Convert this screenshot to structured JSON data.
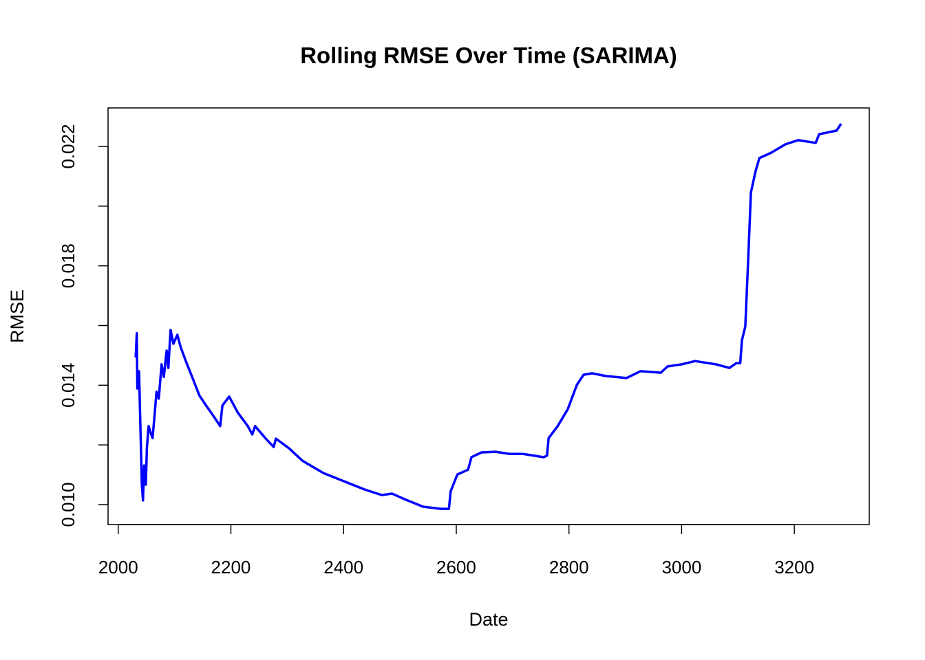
{
  "chart_data": {
    "type": "line",
    "title": "Rolling RMSE Over Time (SARIMA)",
    "x_label": "Date",
    "y_label": "RMSE",
    "x": [
      2031,
      2033,
      2034,
      2037,
      2040,
      2042,
      2044,
      2046,
      2049,
      2051,
      2054,
      2057,
      2061,
      2065,
      2068,
      2072,
      2077,
      2081,
      2086,
      2089,
      2093,
      2098,
      2105,
      2111,
      2120,
      2132,
      2144,
      2156,
      2169,
      2181,
      2185,
      2197,
      2212,
      2230,
      2238,
      2243,
      2261,
      2276,
      2280,
      2303,
      2327,
      2364,
      2401,
      2437,
      2468,
      2486,
      2511,
      2541,
      2572,
      2587,
      2590,
      2602,
      2621,
      2627,
      2645,
      2670,
      2694,
      2718,
      2755,
      2761,
      2764,
      2780,
      2798,
      2814,
      2826,
      2841,
      2865,
      2902,
      2927,
      2963,
      2975,
      3000,
      3024,
      3061,
      3085,
      3097,
      3104,
      3107,
      3113,
      3118,
      3123,
      3131,
      3138,
      3159,
      3184,
      3207,
      3238,
      3244,
      3275,
      3283
    ],
    "values": [
      0.01493,
      0.01574,
      0.01389,
      0.01447,
      0.01217,
      0.01067,
      0.01014,
      0.01131,
      0.01067,
      0.01193,
      0.01263,
      0.01244,
      0.01223,
      0.01309,
      0.01378,
      0.01355,
      0.0147,
      0.01428,
      0.01516,
      0.01458,
      0.01585,
      0.01539,
      0.01569,
      0.01527,
      0.01481,
      0.01424,
      0.01366,
      0.01332,
      0.01297,
      0.01263,
      0.01332,
      0.01362,
      0.01309,
      0.01263,
      0.01235,
      0.01263,
      0.01223,
      0.01193,
      0.01221,
      0.01189,
      0.01147,
      0.01106,
      0.01078,
      0.01051,
      0.01032,
      0.01037,
      0.01016,
      0.00993,
      0.00986,
      0.00986,
      0.01044,
      0.01101,
      0.01117,
      0.01159,
      0.01175,
      0.01177,
      0.0117,
      0.0117,
      0.01159,
      0.01164,
      0.01223,
      0.01263,
      0.0132,
      0.01401,
      0.01435,
      0.0144,
      0.01431,
      0.01424,
      0.01447,
      0.01442,
      0.01463,
      0.0147,
      0.01481,
      0.0147,
      0.01458,
      0.01474,
      0.01474,
      0.0155,
      0.01597,
      0.01815,
      0.02046,
      0.02115,
      0.02161,
      0.02179,
      0.02207,
      0.02221,
      0.02212,
      0.02241,
      0.02253,
      0.02276
    ],
    "color": "#0000ff",
    "xlim": [
      1982,
      3333
    ],
    "xticks": [
      2000,
      2200,
      2400,
      2600,
      2800,
      3000,
      3200
    ],
    "ylim": [
      0.009332,
      0.02329
    ],
    "yticks": [
      {
        "value": 0.01,
        "label": "0.010"
      },
      0.014,
      0.018,
      0.022
    ],
    "yticks_minor": [
      0.012,
      0.016,
      0.02
    ]
  }
}
